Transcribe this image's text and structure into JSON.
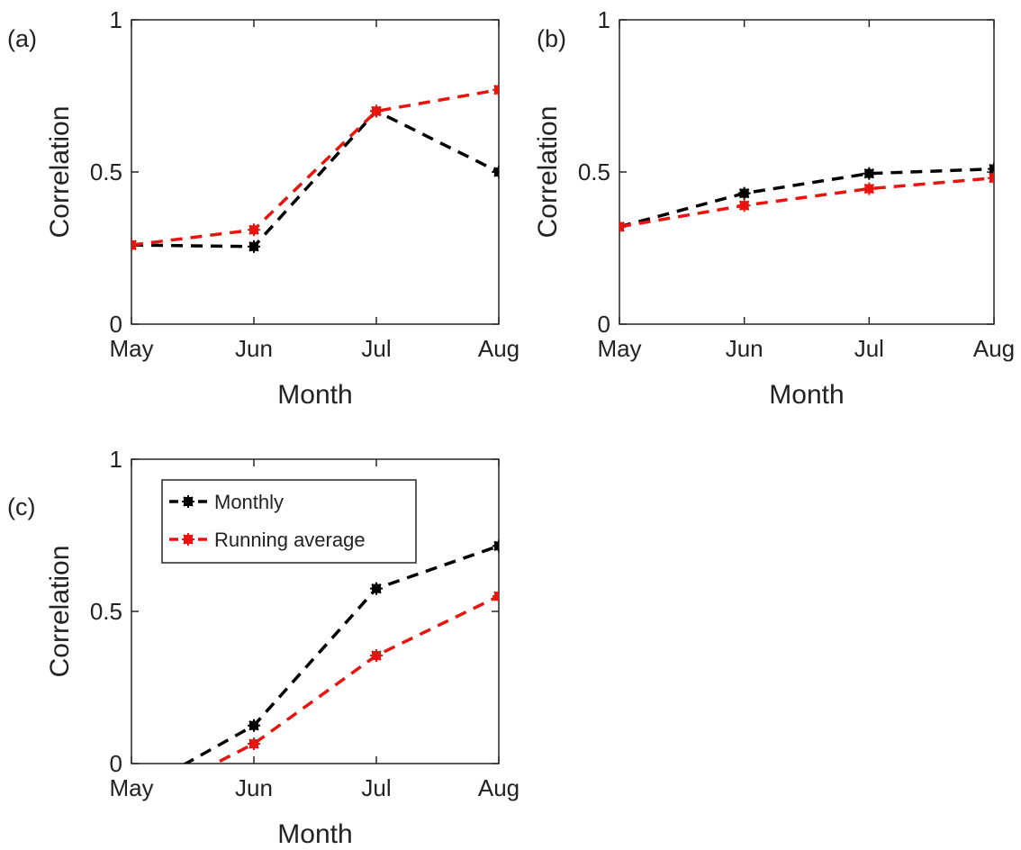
{
  "figure": {
    "panels": [
      {
        "label": "(a)"
      },
      {
        "label": "(b)"
      },
      {
        "label": "(c)"
      }
    ],
    "legend": {
      "entries": [
        "Monthly",
        "Running average"
      ]
    }
  },
  "chart_data": [
    {
      "type": "line",
      "panel": "(a)",
      "categories": [
        "May",
        "Jun",
        "Jul",
        "Aug"
      ],
      "series": [
        {
          "name": "Monthly",
          "color": "#000000",
          "values": [
            0.26,
            0.255,
            0.7,
            0.5
          ]
        },
        {
          "name": "Running average",
          "color": "#e8150f",
          "values": [
            0.26,
            0.31,
            0.7,
            0.77
          ]
        }
      ],
      "xlabel": "Month",
      "ylabel": "Correlation",
      "ylim": [
        0,
        1
      ],
      "yticks": [
        "0",
        "0.5",
        "1"
      ],
      "grid": false,
      "line_style": "dashed",
      "marker": "asterisk-square",
      "legend": "none"
    },
    {
      "type": "line",
      "panel": "(b)",
      "categories": [
        "May",
        "Jun",
        "Jul",
        "Aug"
      ],
      "series": [
        {
          "name": "Monthly",
          "color": "#000000",
          "values": [
            0.32,
            0.43,
            0.495,
            0.51
          ]
        },
        {
          "name": "Running average",
          "color": "#e8150f",
          "values": [
            0.32,
            0.39,
            0.445,
            0.48
          ]
        }
      ],
      "xlabel": "Month",
      "ylabel": "Correlation",
      "ylim": [
        0,
        1
      ],
      "yticks": [
        "0",
        "0.5",
        "1"
      ],
      "grid": false,
      "line_style": "dashed",
      "marker": "asterisk-square",
      "legend": "none"
    },
    {
      "type": "line",
      "panel": "(c)",
      "categories": [
        "May",
        "Jun",
        "Jul",
        "Aug"
      ],
      "series": [
        {
          "name": "Monthly",
          "color": "#000000",
          "values": [
            -0.1,
            0.125,
            0.575,
            0.715
          ]
        },
        {
          "name": "Running average",
          "color": "#e8150f",
          "values": [
            -0.14,
            0.065,
            0.355,
            0.55
          ]
        }
      ],
      "xlabel": "Month",
      "ylabel": "Correlation",
      "ylim": [
        0,
        1
      ],
      "yticks": [
        "0",
        "0.5",
        "1"
      ],
      "grid": false,
      "line_style": "dashed",
      "marker": "asterisk-square",
      "legend": "top-left"
    }
  ]
}
